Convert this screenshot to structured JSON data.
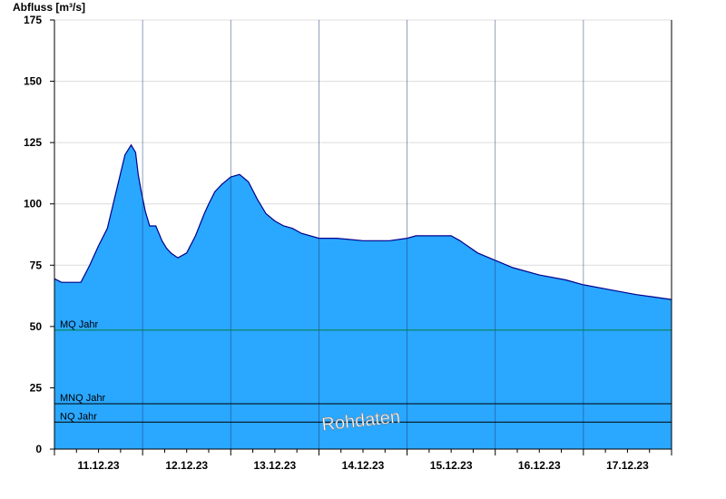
{
  "chart_data": {
    "type": "area",
    "ylabel": "Abfluss [m³/s]",
    "ylim": [
      0,
      175
    ],
    "yticks": [
      0,
      25,
      50,
      75,
      100,
      125,
      150,
      175
    ],
    "xlim_days": [
      0,
      7
    ],
    "x_tick_labels": [
      "11.12.23",
      "12.12.23",
      "13.12.23",
      "14.12.23",
      "15.12.23",
      "16.12.23",
      "17.12.23"
    ],
    "grid": true,
    "series": [
      {
        "x_day_offset": [
          0,
          0.08,
          0.3,
          0.4,
          0.5,
          0.6,
          0.7,
          0.8,
          0.87,
          0.92,
          0.95,
          0.98,
          1.03,
          1.08,
          1.15,
          1.22,
          1.27,
          1.32,
          1.4,
          1.5,
          1.6,
          1.7,
          1.75,
          1.82,
          1.9,
          2.0,
          2.1,
          2.2,
          2.3,
          2.4,
          2.5,
          2.6,
          2.7,
          2.8,
          3.0,
          3.2,
          3.5,
          3.8,
          4.0,
          4.1,
          4.5,
          4.6,
          4.8,
          5.0,
          5.2,
          5.5,
          5.8,
          6.0,
          6.3,
          6.6,
          6.8,
          7.0
        ],
        "y": [
          69.5,
          68,
          68,
          75,
          83,
          90,
          105,
          120,
          124,
          121,
          112,
          106,
          97,
          91,
          91,
          85,
          82,
          80,
          78,
          80,
          87,
          96,
          100,
          105,
          108,
          111,
          112,
          109,
          102,
          96,
          93,
          91,
          90,
          88,
          86,
          86,
          85,
          85,
          86,
          87,
          87,
          85,
          80,
          77,
          74,
          71,
          69,
          67,
          65,
          63,
          62,
          61
        ]
      }
    ],
    "reference_lines": [
      {
        "label": "MQ Jahr",
        "value": 48.5,
        "color": "#007f3f"
      },
      {
        "label": "MNQ Jahr",
        "value": 18.5,
        "color": "#000000"
      },
      {
        "label": "NQ Jahr",
        "value": 11,
        "color": "#000000"
      }
    ],
    "annotation": "Rohdaten",
    "colors": {
      "fill": "#2aa7ff",
      "line": "#00008b",
      "grid": "#dcdcdc"
    }
  }
}
